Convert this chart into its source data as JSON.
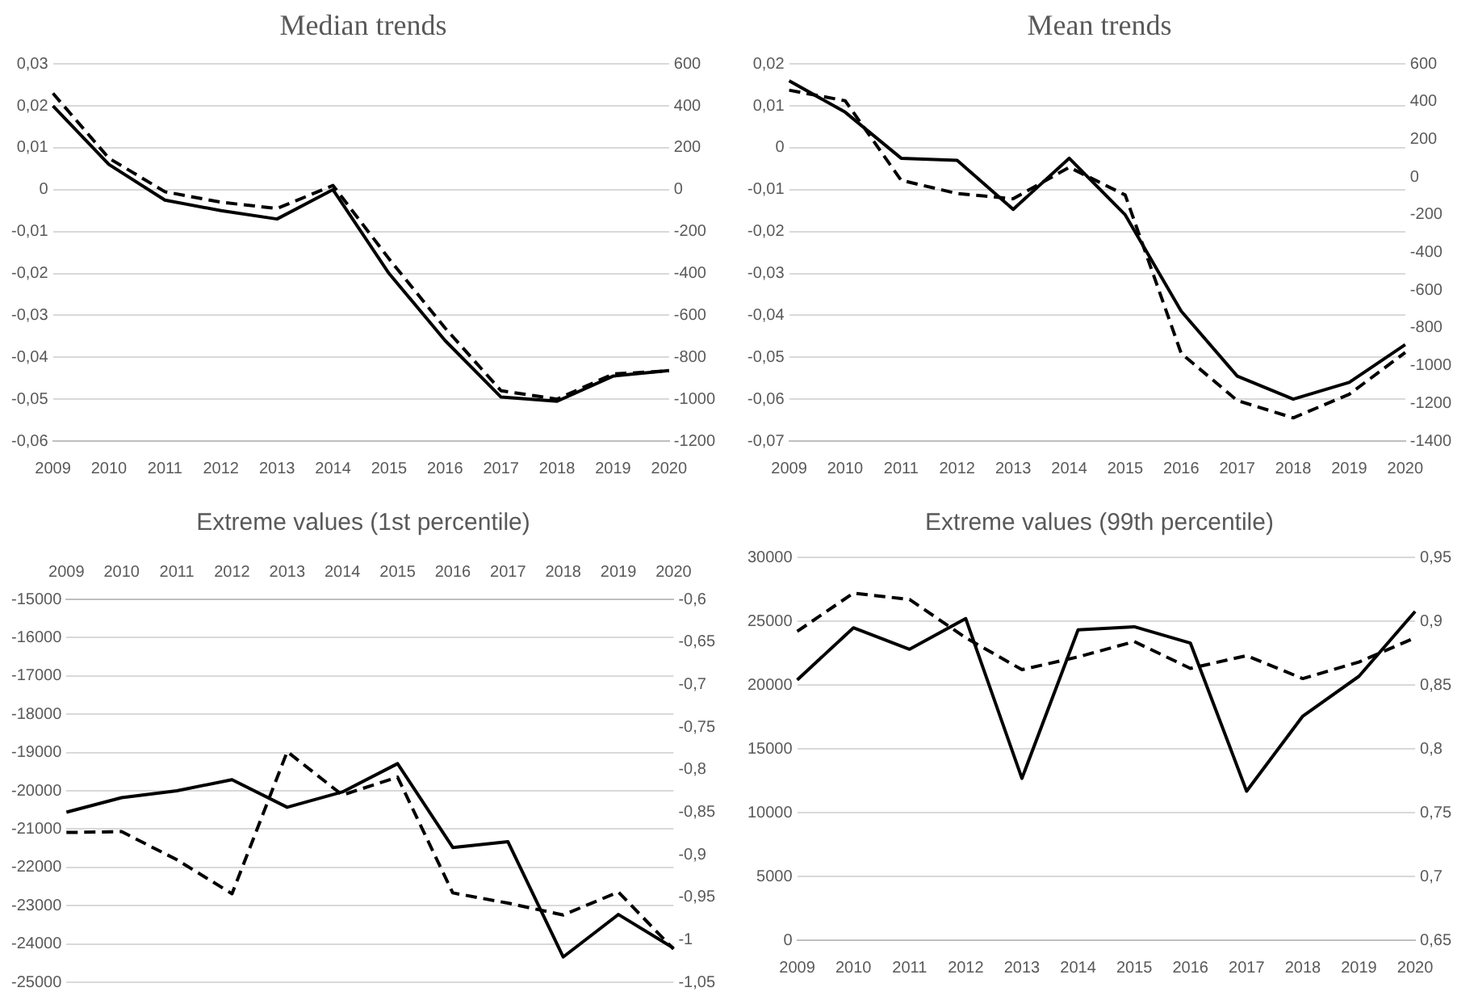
{
  "chart_data": [
    {
      "type": "line",
      "title": "Median trends",
      "categories": [
        "2009",
        "2010",
        "2011",
        "2012",
        "2013",
        "2014",
        "2015",
        "2016",
        "2017",
        "2018",
        "2019",
        "2020"
      ],
      "ylim": [
        -0.06,
        0.03
      ],
      "yticks": [
        {
          "value": -0.06,
          "label": "-0,06"
        },
        {
          "value": -0.05,
          "label": "-0,05"
        },
        {
          "value": -0.04,
          "label": "-0,04"
        },
        {
          "value": -0.03,
          "label": "-0,03"
        },
        {
          "value": -0.02,
          "label": "-0,02"
        },
        {
          "value": -0.01,
          "label": "-0,01"
        },
        0,
        {
          "value": 0.01,
          "label": "0,01"
        },
        {
          "value": 0.02,
          "label": "0,02"
        },
        {
          "value": 0.03,
          "label": "0,03"
        }
      ],
      "y2lim": [
        -1200,
        600
      ],
      "y2ticks": [
        -1200,
        -1000,
        -800,
        -600,
        -400,
        -200,
        0,
        200,
        400,
        600
      ],
      "grid": "y",
      "series": [
        {
          "color": "#000000",
          "line_style": "solid",
          "values": [
            0.02,
            0.006,
            -0.0025,
            -0.005,
            -0.007,
            0,
            -0.02,
            -0.036,
            -0.0495,
            -0.0505,
            -0.0445,
            -0.0432
          ]
        },
        {
          "color": "#000000",
          "line_style": "dashed",
          "axis": "y2",
          "values": [
            460,
            150,
            -10,
            -60,
            -90,
            20,
            -330,
            -660,
            -960,
            -1000,
            -880,
            -865
          ]
        }
      ]
    },
    {
      "type": "line",
      "title": "Mean trends",
      "categories": [
        "2009",
        "2010",
        "2011",
        "2012",
        "2013",
        "2014",
        "2015",
        "2016",
        "2017",
        "2018",
        "2019",
        "2020"
      ],
      "ylim": [
        -0.07,
        0.02
      ],
      "yticks": [
        {
          "value": -0.07,
          "label": "-0,07"
        },
        {
          "value": -0.06,
          "label": "-0,06"
        },
        {
          "value": -0.05,
          "label": "-0,05"
        },
        {
          "value": -0.04,
          "label": "-0,04"
        },
        {
          "value": -0.03,
          "label": "-0,03"
        },
        {
          "value": -0.02,
          "label": "-0,02"
        },
        {
          "value": -0.01,
          "label": "-0,01"
        },
        0,
        {
          "value": 0.01,
          "label": "0,01"
        },
        {
          "value": 0.02,
          "label": "0,02"
        }
      ],
      "y2lim": [
        -1400,
        600
      ],
      "y2ticks": [
        -1400,
        -1200,
        -1000,
        -800,
        -600,
        -400,
        -200,
        0,
        200,
        400,
        600
      ],
      "grid": "y",
      "series": [
        {
          "color": "#000000",
          "line_style": "solid",
          "values": [
            0.016,
            0.0085,
            -0.0025,
            -0.003,
            -0.0147,
            -0.0025,
            -0.016,
            -0.039,
            -0.0545,
            -0.06,
            -0.056,
            -0.047
          ]
        },
        {
          "color": "#000000",
          "line_style": "dashed",
          "axis": "y2",
          "values": [
            461,
            405,
            -17,
            -87,
            -115,
            52,
            -95,
            -935,
            -1185,
            -1277,
            -1152,
            -930
          ]
        }
      ]
    },
    {
      "type": "line",
      "title": "Extreme values (1st percentile)",
      "categories": [
        "2009",
        "2010",
        "2011",
        "2012",
        "2013",
        "2014",
        "2015",
        "2016",
        "2017",
        "2018",
        "2019",
        "2020"
      ],
      "ylim": [
        -25000,
        -15000
      ],
      "yticks": [
        -25000,
        -24000,
        -23000,
        -22000,
        -21000,
        -20000,
        -19000,
        -18000,
        -17000,
        -16000,
        -15000
      ],
      "y2lim": [
        -1.05,
        -0.6
      ],
      "y2ticks": [
        {
          "value": -1.05,
          "label": "-1,05"
        },
        -1,
        {
          "value": -0.95,
          "label": "-0,95"
        },
        {
          "value": -0.9,
          "label": "-0,9"
        },
        {
          "value": -0.85,
          "label": "-0,85"
        },
        {
          "value": -0.8,
          "label": "-0,8"
        },
        {
          "value": -0.75,
          "label": "-0,75"
        },
        {
          "value": -0.7,
          "label": "-0,7"
        },
        {
          "value": -0.65,
          "label": "-0,65"
        },
        {
          "value": -0.6,
          "label": "-0,6"
        }
      ],
      "grid": "y",
      "series": [
        {
          "color": "#000000",
          "line_style": "solid",
          "values": [
            -20560,
            -20180,
            -20000,
            -19710,
            -20430,
            -20030,
            -19290,
            -21480,
            -21330,
            -24340,
            -23230,
            -24110
          ]
        },
        {
          "color": "#000000",
          "line_style": "dashed",
          "axis": "y2",
          "values": [
            -0.874,
            -0.873,
            -0.906,
            -0.946,
            -0.779,
            -0.83,
            -0.809,
            -0.945,
            -0.957,
            -0.971,
            -0.944,
            -1.011
          ]
        }
      ]
    },
    {
      "type": "line",
      "title": "Extreme values (99th percentile)",
      "categories": [
        "2009",
        "2010",
        "2011",
        "2012",
        "2013",
        "2014",
        "2015",
        "2016",
        "2017",
        "2018",
        "2019",
        "2020"
      ],
      "ylim": [
        0,
        30000
      ],
      "yticks": [
        0,
        5000,
        10000,
        15000,
        20000,
        25000,
        30000
      ],
      "y2lim": [
        0.65,
        0.95
      ],
      "y2ticks": [
        {
          "value": 0.65,
          "label": "0,65"
        },
        {
          "value": 0.7,
          "label": "0,7"
        },
        {
          "value": 0.75,
          "label": "0,75"
        },
        {
          "value": 0.8,
          "label": "0,8"
        },
        {
          "value": 0.85,
          "label": "0,85"
        },
        {
          "value": 0.9,
          "label": "0,9"
        },
        {
          "value": 0.95,
          "label": "0,95"
        }
      ],
      "grid": "y",
      "series": [
        {
          "color": "#000000",
          "line_style": "solid",
          "values": [
            20400,
            24480,
            22800,
            25200,
            12680,
            24320,
            24560,
            23280,
            11680,
            17560,
            20680,
            25760
          ]
        },
        {
          "color": "#000000",
          "line_style": "dashed",
          "axis": "y2",
          "values": [
            0.892,
            0.922,
            0.917,
            0.887,
            0.862,
            0.872,
            0.884,
            0.863,
            0.873,
            0.855,
            0.868,
            0.887
          ]
        }
      ]
    }
  ]
}
